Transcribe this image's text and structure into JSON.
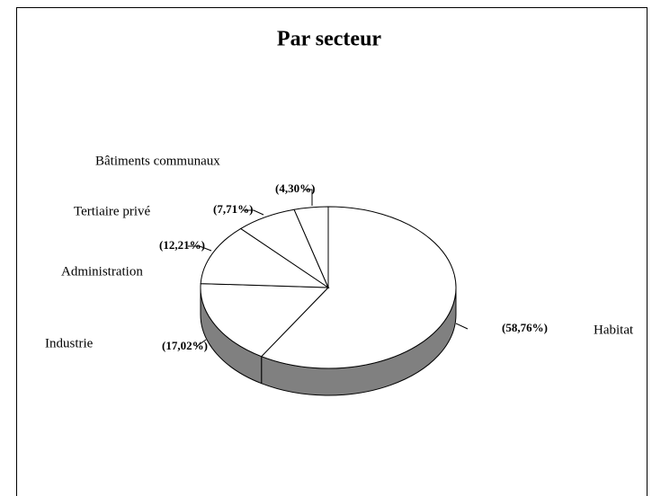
{
  "chart_data": {
    "type": "pie",
    "title": "Par secteur",
    "categories": [
      "Habitat",
      "Industrie",
      "Administration",
      "Tertiaire privé",
      "Bâtiments communaux"
    ],
    "values": [
      58.76,
      17.02,
      12.21,
      7.71,
      4.3
    ],
    "value_labels": [
      "(58,76%)",
      "(17,02%)",
      "(12,21%)",
      "(7,71%)",
      "(4,30%)"
    ],
    "color": "#ffffff",
    "side_color": "#808080"
  }
}
